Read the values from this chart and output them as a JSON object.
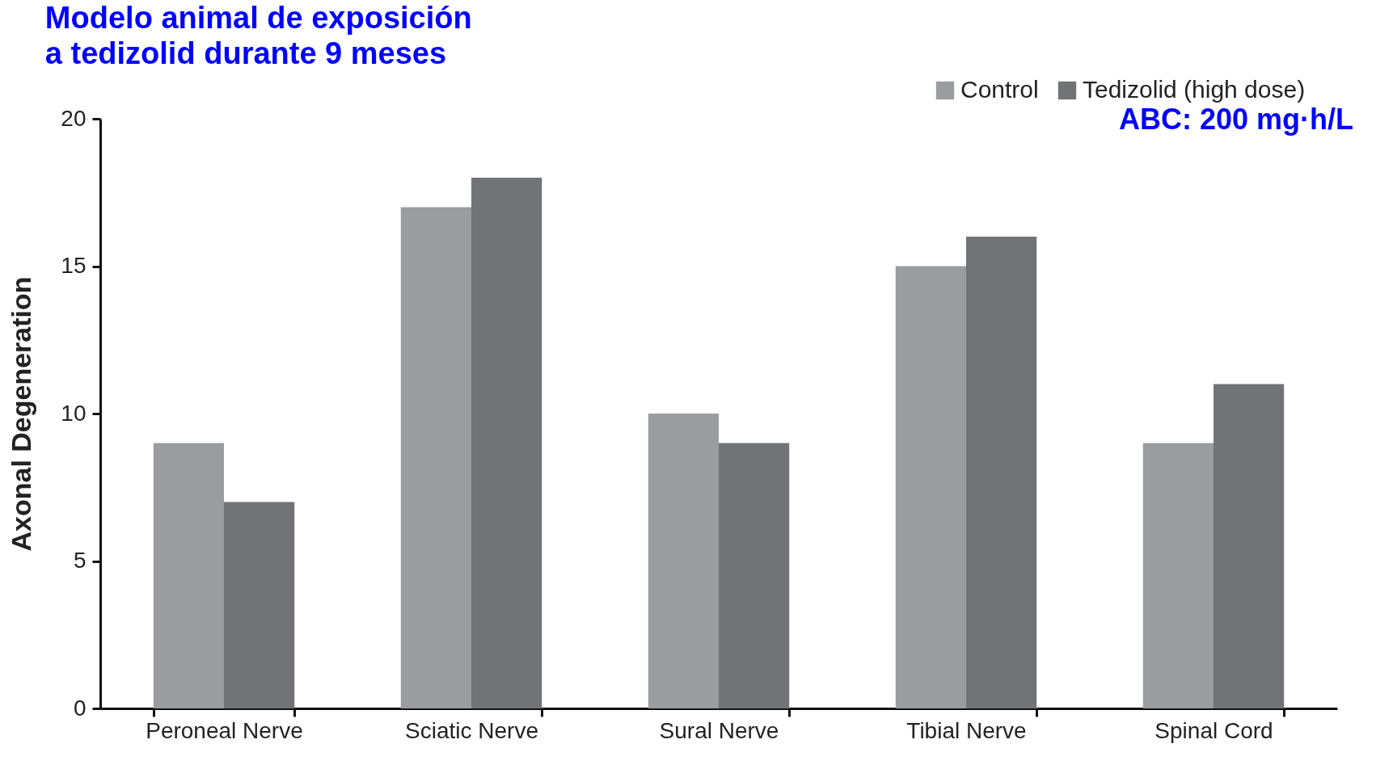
{
  "chart_data": {
    "type": "bar",
    "title": "Modelo animal de exposición a tedizolid durante 9 meses",
    "ylabel": "Axonal Degeneration",
    "categories": [
      "Peroneal Nerve",
      "Sciatic Nerve",
      "Sural Nerve",
      "Tibial Nerve",
      "Spinal Cord"
    ],
    "series": [
      {
        "name": "Control",
        "color": "#9b9c9f",
        "values": [
          9,
          17,
          10,
          15,
          9
        ]
      },
      {
        "name": "Tedizolid (high dose)",
        "color": "#727377",
        "values": [
          7,
          18,
          9,
          16,
          11
        ]
      }
    ],
    "ylim": [
      0,
      20
    ],
    "yticks": [
      0,
      5,
      10,
      15,
      20
    ],
    "grid": false,
    "legend": "top right",
    "annotations": [
      "ABC: 200 mg·h/L"
    ]
  }
}
